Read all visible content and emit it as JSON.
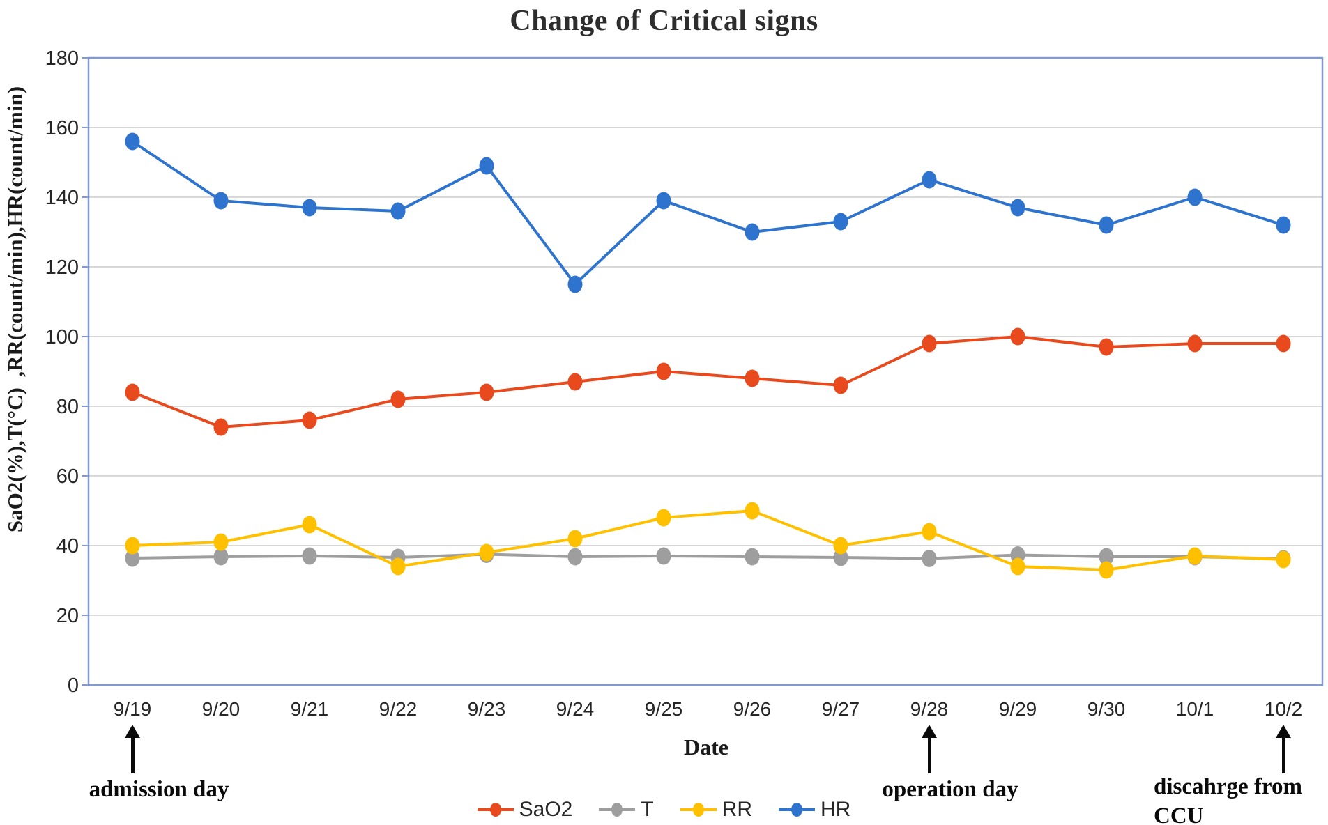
{
  "title": "Change of Critical signs",
  "chart_data": {
    "type": "line",
    "title": "Change of Critical signs",
    "xlabel": "Date",
    "ylabel": "SaO2(%),T(°C)  ,RR(count/min),HR(count/min)",
    "ylim": [
      0,
      180
    ],
    "y_tick_step": 20,
    "y_tick_labels": [
      "0",
      "20",
      "40",
      "60",
      "80",
      "100",
      "120",
      "140",
      "160",
      "180"
    ],
    "grid": "horizontal",
    "legend_position": "bottom-center",
    "categories": [
      "9/19",
      "9/20",
      "9/21",
      "9/22",
      "9/23",
      "9/24",
      "9/25",
      "9/26",
      "9/27",
      "9/28",
      "9/29",
      "9/30",
      "10/1",
      "10/2"
    ],
    "series": [
      {
        "name": "SaO2",
        "color": "#E8491D",
        "values": [
          84,
          74,
          76,
          82,
          84,
          87,
          90,
          88,
          86,
          98,
          100,
          97,
          98,
          98
        ]
      },
      {
        "name": "T",
        "color": "#9E9E9E",
        "values": [
          36.4,
          36.8,
          37,
          36.6,
          37.5,
          36.8,
          37,
          36.8,
          36.6,
          36.3,
          37.3,
          36.8,
          36.8,
          36.2
        ]
      },
      {
        "name": "RR",
        "color": "#FFC000",
        "values": [
          40,
          41,
          46,
          34,
          38,
          42,
          48,
          50,
          40,
          44,
          34,
          33,
          37,
          36
        ]
      },
      {
        "name": "HR",
        "color": "#2E74CE",
        "values": [
          156,
          139,
          137,
          136,
          149,
          115,
          139,
          130,
          133,
          145,
          137,
          132,
          140,
          132
        ]
      }
    ],
    "annotations": [
      {
        "lines": [
          "admission day"
        ],
        "category": "9/19",
        "align": "center",
        "dx": 38
      },
      {
        "lines": [
          "operation day"
        ],
        "category": "9/28",
        "align": "center",
        "dx": 30
      },
      {
        "lines": [
          "discahrge from",
          "CCU"
        ],
        "category": "10/2",
        "align": "left",
        "dx": -186
      }
    ],
    "colors": {
      "grid": "#d9d9d9",
      "plot_border": "#8599d1",
      "tick_text": "#262626",
      "annotation": "#0a0a0a"
    }
  }
}
